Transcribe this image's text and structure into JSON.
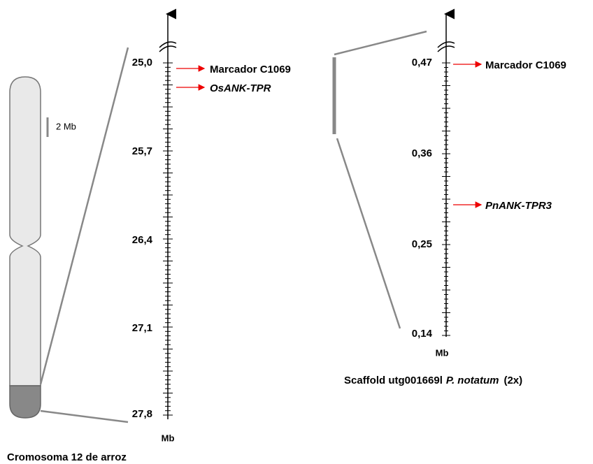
{
  "scale_bar": "2 Mb",
  "left": {
    "ticks": [
      "25,0",
      "25,7",
      "26,4",
      "27,1",
      "27,8"
    ],
    "unit": "Mb",
    "markers": [
      "Marcador C1069",
      "OsANK-TPR"
    ],
    "caption": "Cromosoma 12 de arroz"
  },
  "right": {
    "ticks": [
      "0,47",
      "0,36",
      "0,25",
      "0,14"
    ],
    "unit": "Mb",
    "markers": [
      "Marcador C1069",
      "PnANK-TPR3"
    ],
    "caption": {
      "prefix": "Scaffold utg001669l",
      "species": "P. notatum",
      "suffix": "(2x)"
    }
  }
}
